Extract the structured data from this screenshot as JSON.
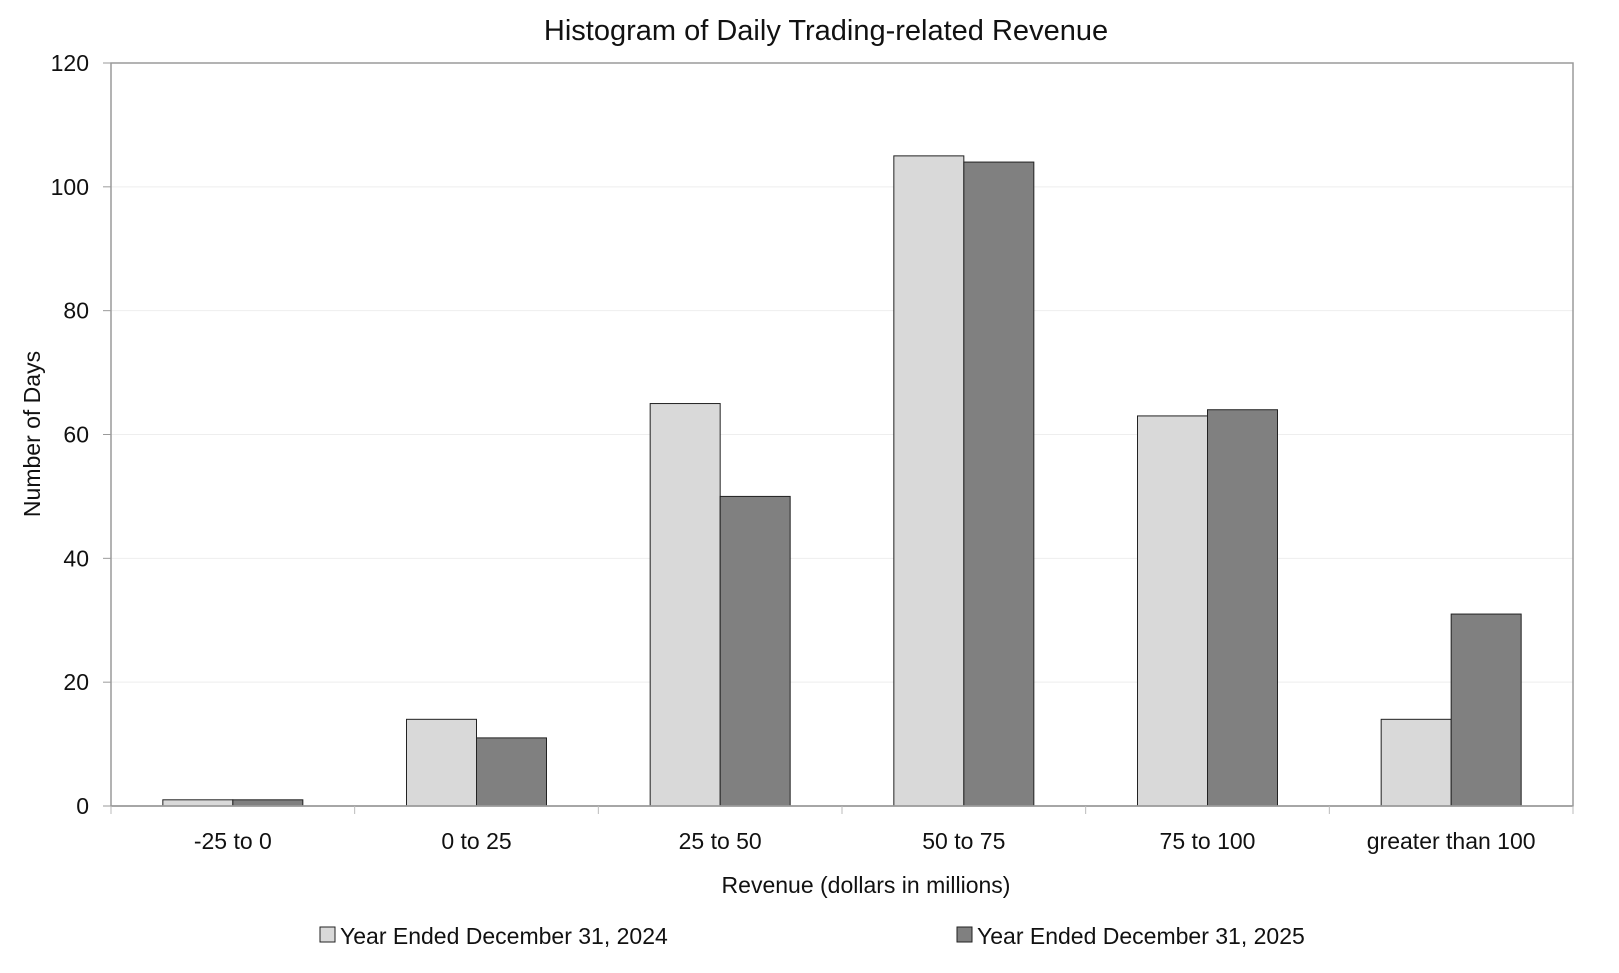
{
  "chart_data": {
    "type": "bar",
    "title": "Histogram of Daily Trading-related Revenue",
    "xlabel": "Revenue (dollars in millions)",
    "ylabel": "Number of Days",
    "ylim": [
      0,
      120
    ],
    "yticks": [
      0,
      20,
      40,
      60,
      80,
      100,
      120
    ],
    "grid": true,
    "legend_position": "bottom",
    "categories": [
      "-25 to 0",
      "0 to 25",
      "25 to 50",
      "50 to 75",
      "75 to 100",
      "greater than 100"
    ],
    "series": [
      {
        "name": "Year Ended December 31, 2024",
        "color": "#d9d9d9",
        "values": [
          1,
          14,
          65,
          105,
          63,
          14
        ]
      },
      {
        "name": "Year Ended December 31, 2025",
        "color": "#808080",
        "values": [
          1,
          11,
          50,
          104,
          64,
          31
        ]
      }
    ]
  }
}
